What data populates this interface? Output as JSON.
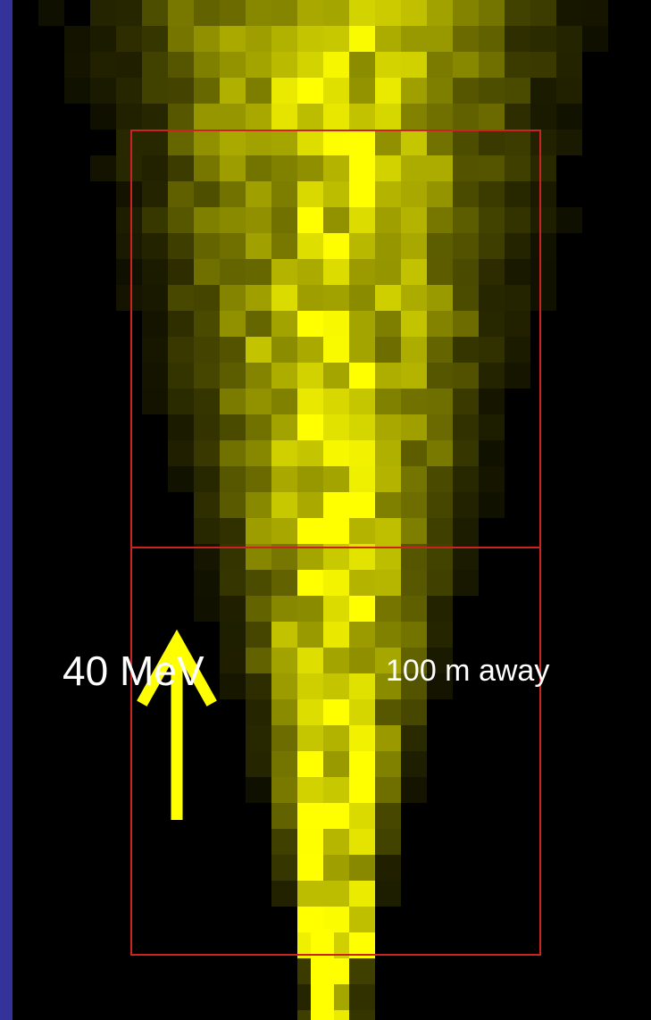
{
  "image": {
    "description_colors": {
      "border": "#333399",
      "background": "#000000",
      "shower": "#ffff00",
      "detector_outline": "#cc2222",
      "arrow": "#ffff00"
    },
    "labels": {
      "energy": "40 MeV",
      "distance": "100 m away"
    },
    "icons": [
      "up-arrow-icon"
    ]
  }
}
